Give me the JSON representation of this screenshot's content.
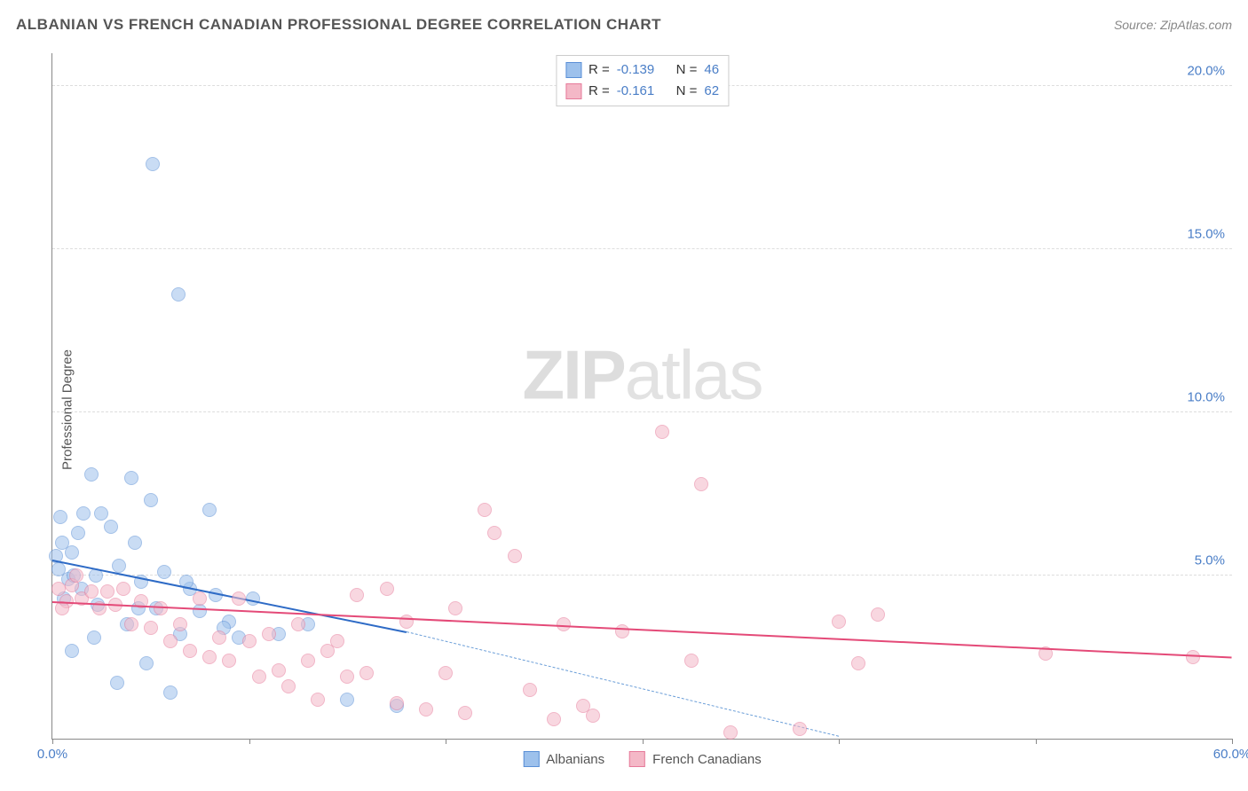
{
  "title": "ALBANIAN VS FRENCH CANADIAN PROFESSIONAL DEGREE CORRELATION CHART",
  "source_label": "Source: ZipAtlas.com",
  "ylabel": "Professional Degree",
  "watermark_zip": "ZIP",
  "watermark_atlas": "atlas",
  "chart": {
    "type": "scatter",
    "xlim": [
      0,
      60
    ],
    "ylim": [
      0,
      21
    ],
    "y_ticks": [
      5,
      10,
      15,
      20
    ],
    "y_tick_labels": [
      "5.0%",
      "10.0%",
      "15.0%",
      "20.0%"
    ],
    "x_ticks": [
      0,
      10,
      20,
      30,
      40,
      50,
      60
    ],
    "x_tick_labels_shown": {
      "0": "0.0%",
      "60": "60.0%"
    },
    "background_color": "#ffffff",
    "grid_color": "#dddddd",
    "axis_color": "#888888",
    "tick_label_color": "#4a7ec7",
    "axis_label_color": "#555555",
    "title_color": "#555555",
    "title_fontsize": 17,
    "label_fontsize": 15,
    "tick_fontsize": 15,
    "marker_radius": 8,
    "marker_opacity": 0.55
  },
  "series": [
    {
      "name": "Albanians",
      "fill": "#9dc1ec",
      "stroke": "#5a8fd6",
      "trend_color": "#2e6bc6",
      "trend_dash_color": "#6b9ed8",
      "r_value": "-0.139",
      "n_value": "46",
      "trend": {
        "x1": 0,
        "y1": 5.5,
        "x2": 18,
        "y2": 3.3
      },
      "trend_dash": {
        "x1": 18,
        "y1": 3.3,
        "x2": 40,
        "y2": 0.1
      },
      "points": [
        [
          0.2,
          5.6
        ],
        [
          0.5,
          6.0
        ],
        [
          0.3,
          5.2
        ],
        [
          0.8,
          4.9
        ],
        [
          1.0,
          5.7
        ],
        [
          1.1,
          5.0
        ],
        [
          1.3,
          6.3
        ],
        [
          0.6,
          4.3
        ],
        [
          0.4,
          6.8
        ],
        [
          2.0,
          8.1
        ],
        [
          1.5,
          4.6
        ],
        [
          2.2,
          5.0
        ],
        [
          2.5,
          6.9
        ],
        [
          3.0,
          6.5
        ],
        [
          2.3,
          4.1
        ],
        [
          3.4,
          5.3
        ],
        [
          3.8,
          3.5
        ],
        [
          4.2,
          6.0
        ],
        [
          4.5,
          4.8
        ],
        [
          4.8,
          2.3
        ],
        [
          5.0,
          7.3
        ],
        [
          5.3,
          4.0
        ],
        [
          5.7,
          5.1
        ],
        [
          6.0,
          1.4
        ],
        [
          6.5,
          3.2
        ],
        [
          7.0,
          4.6
        ],
        [
          7.5,
          3.9
        ],
        [
          8.0,
          7.0
        ],
        [
          8.3,
          4.4
        ],
        [
          9.0,
          3.6
        ],
        [
          9.5,
          3.1
        ],
        [
          5.1,
          17.6
        ],
        [
          6.4,
          13.6
        ],
        [
          4.0,
          8.0
        ],
        [
          1.6,
          6.9
        ],
        [
          1.0,
          2.7
        ],
        [
          2.1,
          3.1
        ],
        [
          3.3,
          1.7
        ],
        [
          4.4,
          4.0
        ],
        [
          6.8,
          4.8
        ],
        [
          8.7,
          3.4
        ],
        [
          10.2,
          4.3
        ],
        [
          11.5,
          3.2
        ],
        [
          13.0,
          3.5
        ],
        [
          15.0,
          1.2
        ],
        [
          17.5,
          1.0
        ]
      ]
    },
    {
      "name": "French Canadians",
      "fill": "#f4b8c7",
      "stroke": "#e67a9a",
      "trend_color": "#e44a78",
      "r_value": "-0.161",
      "n_value": "62",
      "trend": {
        "x1": 0,
        "y1": 4.2,
        "x2": 60,
        "y2": 2.5
      },
      "points": [
        [
          0.3,
          4.6
        ],
        [
          0.7,
          4.2
        ],
        [
          1.0,
          4.7
        ],
        [
          0.5,
          4.0
        ],
        [
          1.5,
          4.3
        ],
        [
          1.2,
          5.0
        ],
        [
          2.0,
          4.5
        ],
        [
          2.4,
          4.0
        ],
        [
          2.8,
          4.5
        ],
        [
          3.2,
          4.1
        ],
        [
          3.6,
          4.6
        ],
        [
          4.0,
          3.5
        ],
        [
          4.5,
          4.2
        ],
        [
          5.0,
          3.4
        ],
        [
          5.5,
          4.0
        ],
        [
          6.0,
          3.0
        ],
        [
          6.5,
          3.5
        ],
        [
          7.0,
          2.7
        ],
        [
          7.5,
          4.3
        ],
        [
          8.0,
          2.5
        ],
        [
          8.5,
          3.1
        ],
        [
          9.0,
          2.4
        ],
        [
          9.5,
          4.3
        ],
        [
          10.0,
          3.0
        ],
        [
          10.5,
          1.9
        ],
        [
          11.0,
          3.2
        ],
        [
          11.5,
          2.1
        ],
        [
          12.0,
          1.6
        ],
        [
          12.5,
          3.5
        ],
        [
          13.0,
          2.4
        ],
        [
          13.5,
          1.2
        ],
        [
          14.0,
          2.7
        ],
        [
          14.5,
          3.0
        ],
        [
          15.0,
          1.9
        ],
        [
          15.5,
          4.4
        ],
        [
          16.0,
          2.0
        ],
        [
          17.0,
          4.6
        ],
        [
          17.5,
          1.1
        ],
        [
          18.0,
          3.6
        ],
        [
          19.0,
          0.9
        ],
        [
          20.0,
          2.0
        ],
        [
          20.5,
          4.0
        ],
        [
          21.0,
          0.8
        ],
        [
          22.0,
          7.0
        ],
        [
          22.5,
          6.3
        ],
        [
          23.5,
          5.6
        ],
        [
          24.3,
          1.5
        ],
        [
          25.5,
          0.6
        ],
        [
          26.0,
          3.5
        ],
        [
          27.0,
          1.0
        ],
        [
          27.5,
          0.7
        ],
        [
          29.0,
          3.3
        ],
        [
          31.0,
          9.4
        ],
        [
          32.5,
          2.4
        ],
        [
          33.0,
          7.8
        ],
        [
          34.5,
          0.2
        ],
        [
          38.0,
          0.3
        ],
        [
          40.0,
          3.6
        ],
        [
          41.0,
          2.3
        ],
        [
          42.0,
          3.8
        ],
        [
          50.5,
          2.6
        ],
        [
          58.0,
          2.5
        ]
      ]
    }
  ],
  "legend_top": {
    "r_label": "R =",
    "n_label": "N ="
  },
  "legend_bottom": {
    "items": [
      "Albanians",
      "French Canadians"
    ]
  }
}
